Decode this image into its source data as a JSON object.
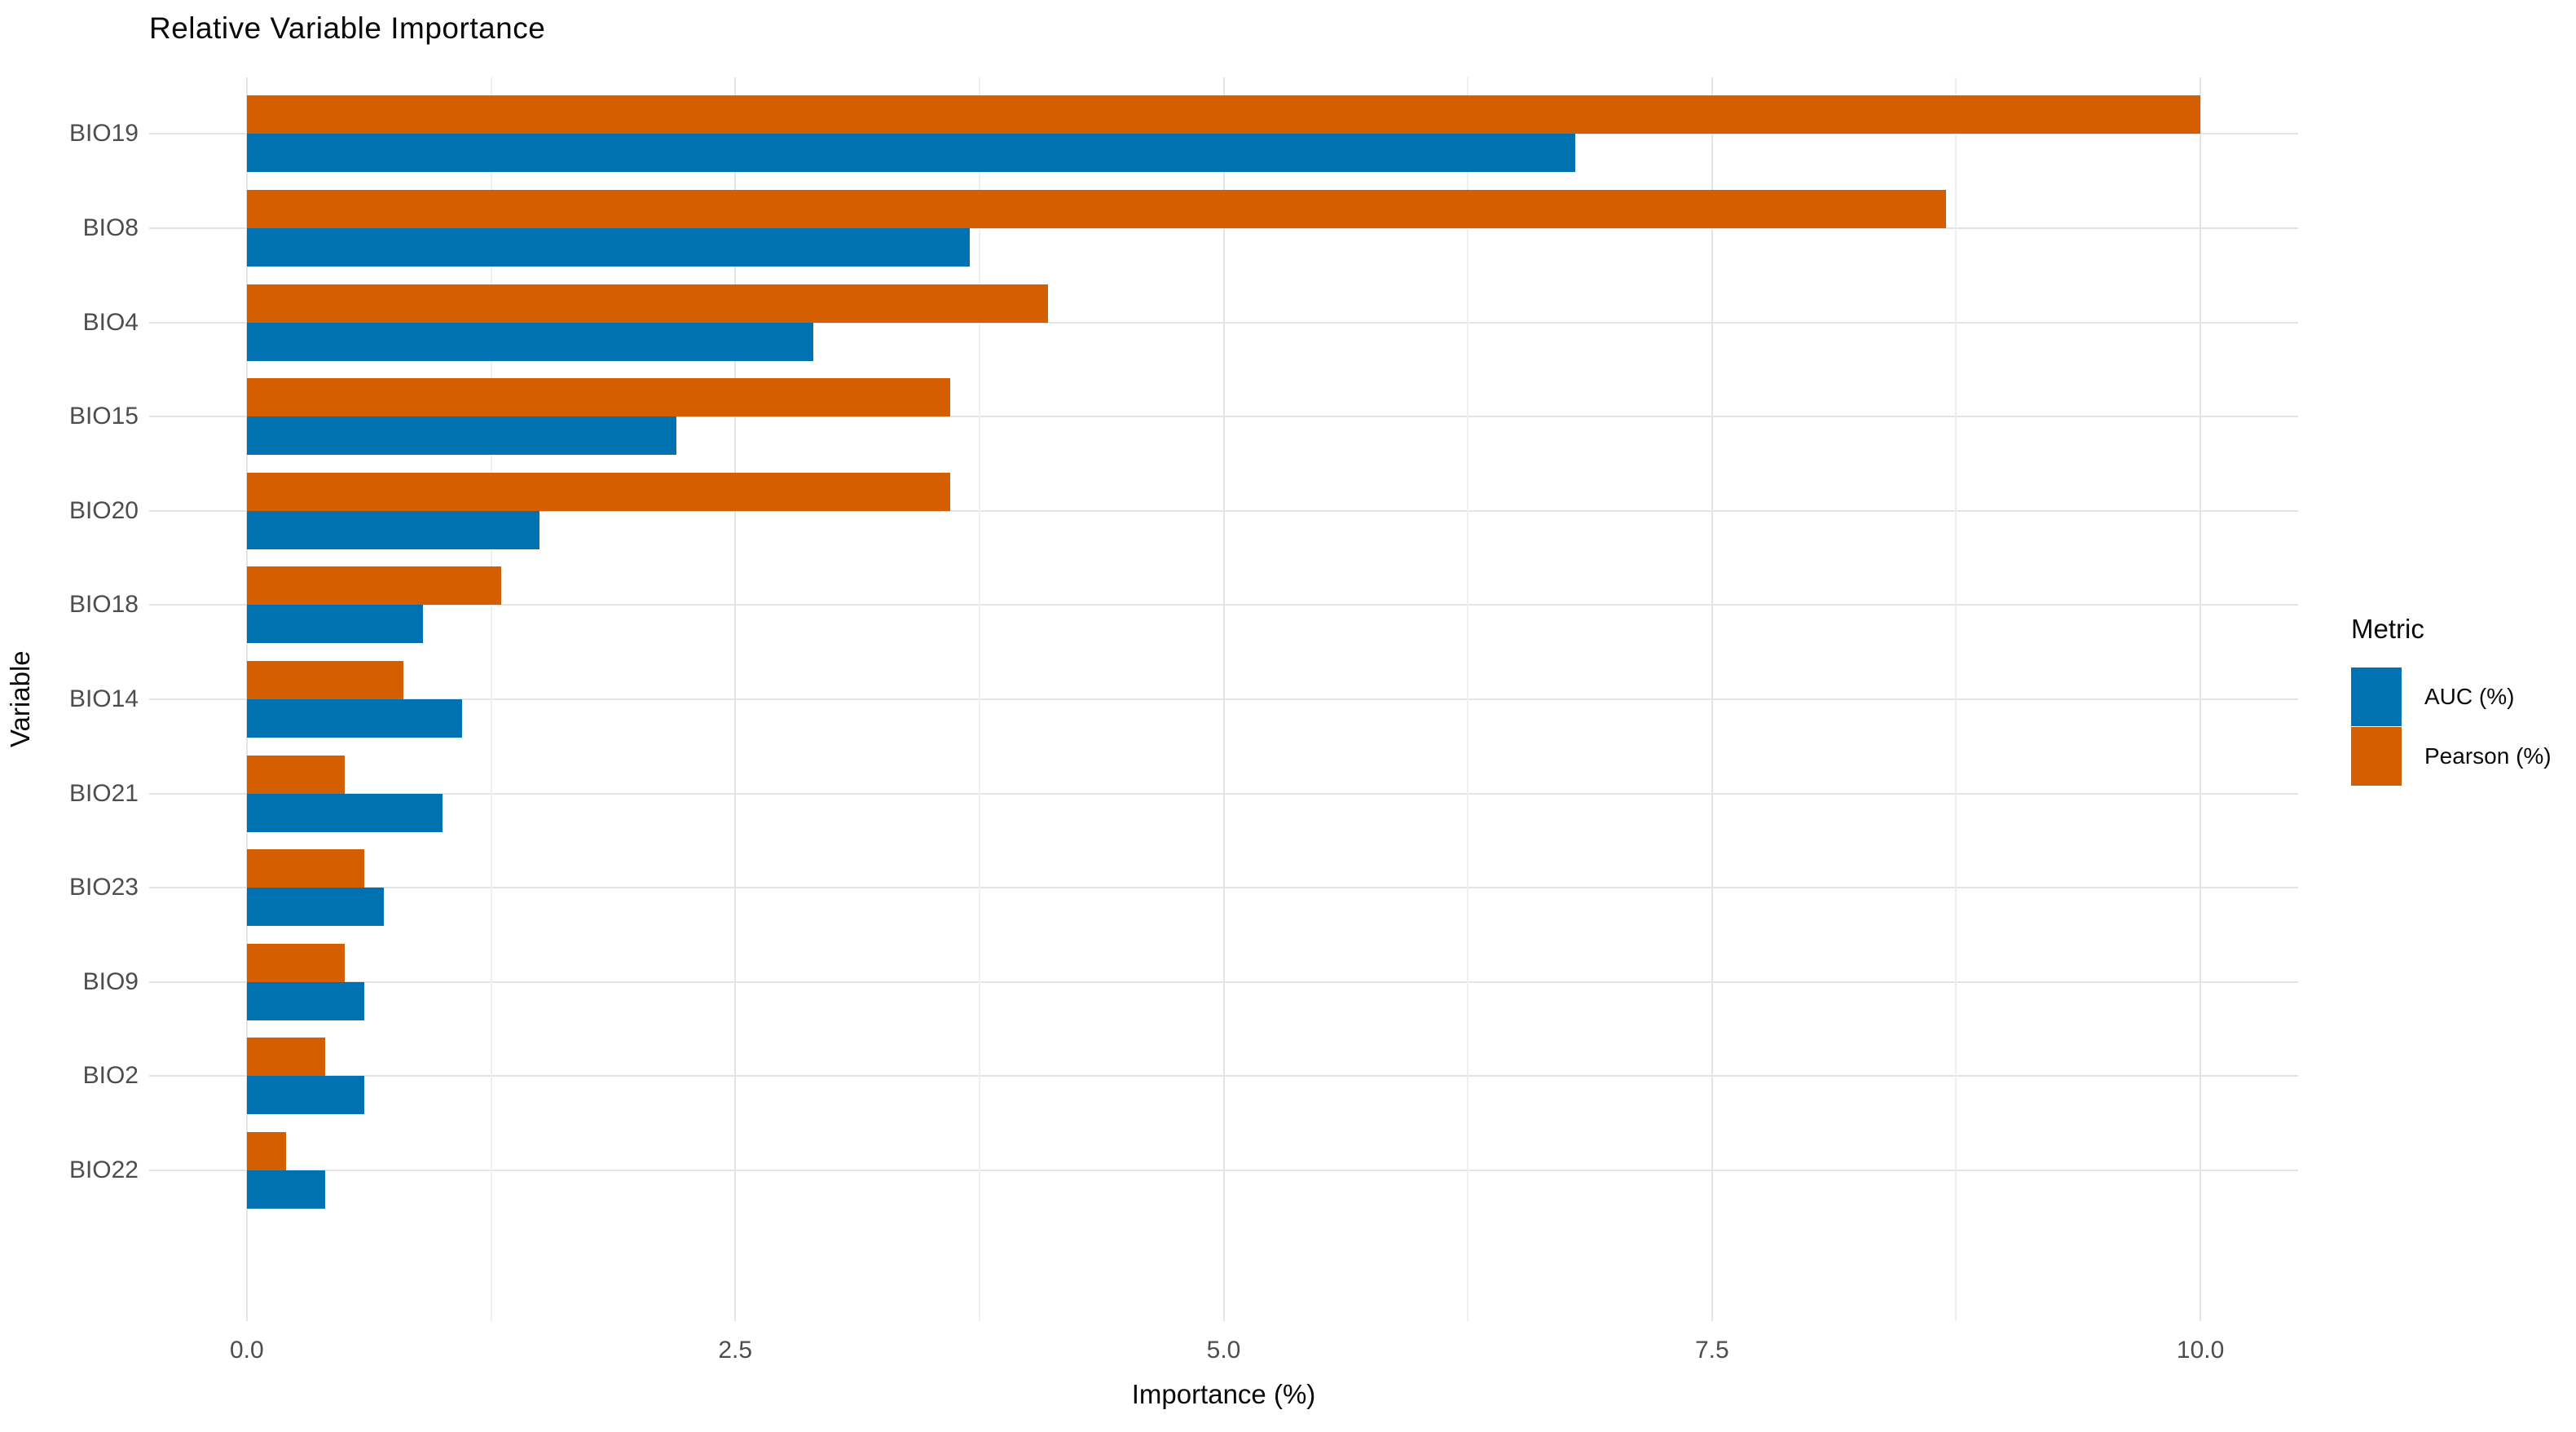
{
  "chart_data": {
    "type": "bar",
    "orientation": "horizontal",
    "title": "Relative Variable Importance",
    "xlabel": "Importance (%)",
    "ylabel": "Variable",
    "legend_title": "Metric",
    "legend_position": "right",
    "grid": true,
    "categories": [
      "BIO19",
      "BIO8",
      "BIO4",
      "BIO15",
      "BIO20",
      "BIO18",
      "BIO14",
      "BIO21",
      "BIO23",
      "BIO9",
      "BIO2",
      "BIO22"
    ],
    "series": [
      {
        "name": "AUC (%)",
        "color": "#0072B2",
        "values": [
          6.8,
          3.7,
          2.9,
          2.2,
          1.5,
          0.9,
          1.1,
          1.0,
          0.7,
          0.6,
          0.6,
          0.4
        ]
      },
      {
        "name": "Pearson (%)",
        "color": "#D55E00",
        "values": [
          10.0,
          8.7,
          4.1,
          3.6,
          3.6,
          1.3,
          0.8,
          0.5,
          0.6,
          0.5,
          0.4,
          0.2
        ]
      }
    ],
    "xlim": [
      -0.5,
      10.5
    ],
    "x_major_ticks": [
      0.0,
      2.5,
      5.0,
      7.5,
      10.0
    ],
    "x_tick_labels": [
      "0.0",
      "2.5",
      "5.0",
      "7.5",
      "10.0"
    ],
    "x_minor_gridlines": [
      1.25,
      3.75,
      6.25,
      8.75
    ]
  },
  "colors": {
    "background": "#FFFFFF",
    "grid_major": "#E4E4E4",
    "grid_minor": "#EFEFEF",
    "axis_text": "#4D4D4D",
    "text": "#0A0A0A",
    "auc_blue": "#0072B2",
    "pearson_orange": "#D55E00"
  }
}
